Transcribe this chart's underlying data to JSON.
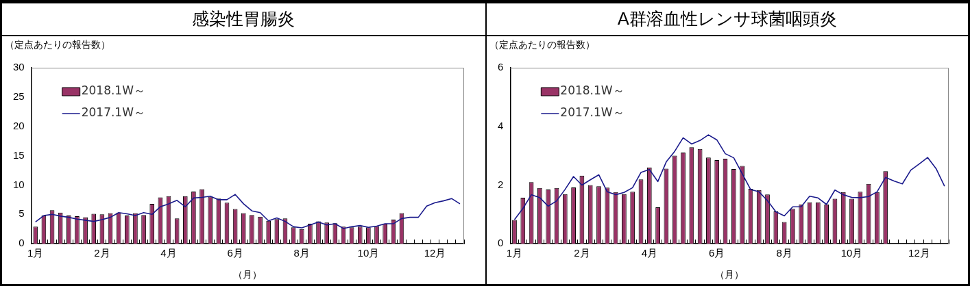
{
  "chart_data": [
    {
      "type": "bar",
      "title": "感染性胃腸炎",
      "ylabel": "（定点あたりの報告数）",
      "xlabel": "（月）",
      "categories": [
        "1月",
        null,
        null,
        null,
        null,
        null,
        null,
        null,
        "2月",
        null,
        null,
        null,
        null,
        null,
        null,
        null,
        "4月",
        null,
        null,
        null,
        null,
        null,
        null,
        null,
        "6月",
        null,
        null,
        null,
        null,
        null,
        null,
        null,
        "8月",
        null,
        null,
        null,
        null,
        null,
        null,
        null,
        "10月",
        null,
        null,
        null,
        null,
        null,
        null,
        null,
        "12月",
        null,
        null,
        null
      ],
      "ylim": [
        0,
        30
      ],
      "yticks": [
        0,
        5,
        10,
        15,
        20,
        25,
        30
      ],
      "legend": "top left",
      "marker": "none",
      "line_style": "solid",
      "series": [
        {
          "name": "2018.1W～",
          "color": "#993366",
          "values": [
            2.9,
            4.8,
            5.7,
            5.3,
            4.8,
            4.7,
            4.5,
            5.1,
            5.0,
            5.2,
            5.3,
            4.8,
            5.2,
            4.9,
            6.8,
            7.9,
            8.1,
            4.3,
            8.1,
            8.9,
            9.3,
            8.0,
            7.7,
            7.0,
            5.9,
            5.2,
            4.9,
            4.6,
            3.9,
            4.2,
            4.3,
            2.8,
            2.5,
            3.4,
            3.8,
            3.6,
            3.5,
            2.9,
            2.8,
            2.9,
            2.8,
            3.0,
            3.4,
            4.1,
            5.2,
            null,
            null,
            null,
            null,
            null,
            null,
            null
          ]
        },
        {
          "name": "2017.1W～",
          "type": "line",
          "color": "#1a1a8c",
          "values": [
            3.7,
            4.8,
            5.0,
            4.7,
            4.5,
            4.2,
            4.0,
            3.8,
            4.1,
            4.5,
            5.3,
            5.1,
            4.8,
            5.3,
            5.0,
            6.3,
            6.8,
            7.4,
            6.3,
            7.8,
            7.9,
            8.1,
            7.5,
            7.5,
            8.4,
            6.8,
            5.6,
            5.3,
            3.9,
            4.4,
            3.8,
            2.9,
            2.7,
            3.2,
            3.7,
            3.2,
            3.4,
            2.6,
            2.9,
            3.1,
            2.8,
            3.0,
            3.4,
            3.4,
            4.3,
            4.5,
            4.5,
            6.4,
            7.0,
            7.3,
            7.7,
            6.8
          ]
        }
      ]
    },
    {
      "type": "bar",
      "title": "A群溶血性レンサ球菌咽頭炎",
      "ylabel": "（定点あたりの報告数）",
      "xlabel": "（月）",
      "categories": [
        "1月",
        null,
        null,
        null,
        null,
        null,
        null,
        null,
        "2月",
        null,
        null,
        null,
        null,
        null,
        null,
        null,
        "4月",
        null,
        null,
        null,
        null,
        null,
        null,
        null,
        "6月",
        null,
        null,
        null,
        null,
        null,
        null,
        null,
        "8月",
        null,
        null,
        null,
        null,
        null,
        null,
        null,
        "10月",
        null,
        null,
        null,
        null,
        null,
        null,
        null,
        "12月",
        null,
        null,
        null
      ],
      "ylim": [
        0,
        6
      ],
      "yticks": [
        0,
        2,
        4,
        6
      ],
      "legend": "top left",
      "marker": "none",
      "line_style": "solid",
      "series": [
        {
          "name": "2018.1W～",
          "color": "#993366",
          "values": [
            0.81,
            1.57,
            2.1,
            1.9,
            1.85,
            1.9,
            1.69,
            1.92,
            2.32,
            2.0,
            1.96,
            1.91,
            1.76,
            1.69,
            1.77,
            2.19,
            2.6,
            1.24,
            2.56,
            3.0,
            3.11,
            3.29,
            3.23,
            2.94,
            2.85,
            2.9,
            2.55,
            2.65,
            1.87,
            1.83,
            1.68,
            1.1,
            0.74,
            1.19,
            1.34,
            1.41,
            1.41,
            1.34,
            1.53,
            1.76,
            1.53,
            1.77,
            2.04,
            1.76,
            2.47,
            null,
            null,
            null,
            null,
            null,
            null,
            null
          ]
        },
        {
          "name": "2017.1W～",
          "type": "line",
          "color": "#1a1a8c",
          "values": [
            0.82,
            1.2,
            1.67,
            1.57,
            1.28,
            1.46,
            1.85,
            2.29,
            2.0,
            2.18,
            2.35,
            1.77,
            1.67,
            1.75,
            1.91,
            2.43,
            2.53,
            2.12,
            2.79,
            3.15,
            3.61,
            3.4,
            3.52,
            3.71,
            3.54,
            3.07,
            2.93,
            2.39,
            1.85,
            1.77,
            1.47,
            1.09,
            0.95,
            1.26,
            1.26,
            1.62,
            1.56,
            1.34,
            1.83,
            1.67,
            1.58,
            1.57,
            1.61,
            1.77,
            2.26,
            2.14,
            2.04,
            2.51,
            2.72,
            2.94,
            2.56,
            1.96
          ]
        }
      ]
    }
  ]
}
